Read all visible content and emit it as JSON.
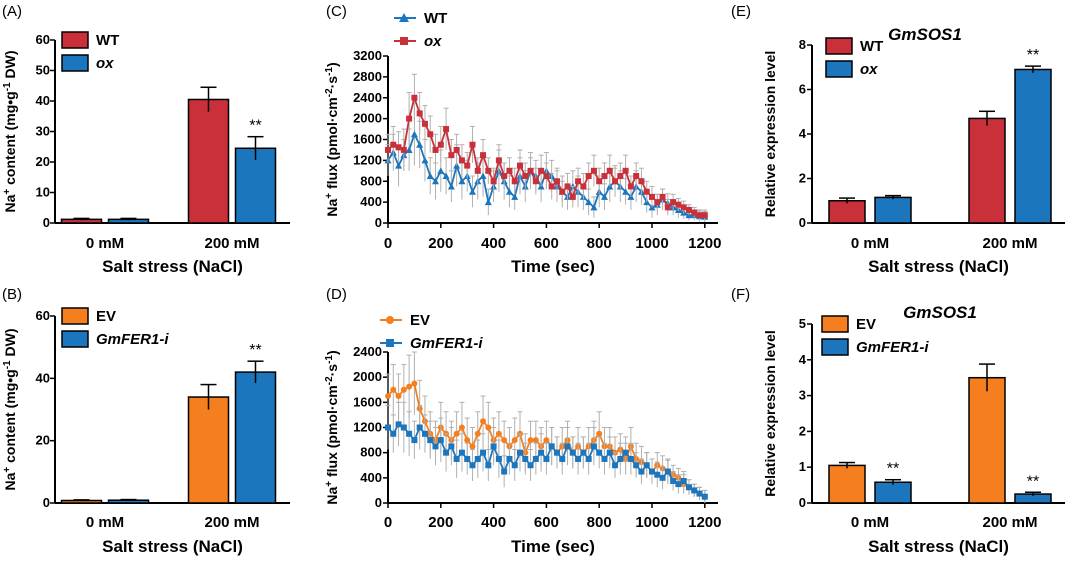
{
  "colors": {
    "red": "#c9303a",
    "blue": "#1c76bd",
    "orange": "#f57f1f",
    "errbar": "#b0b0b0"
  },
  "chart_data": [
    {
      "id": "A",
      "panel_label": "(A)",
      "type": "bar",
      "categories": [
        "0 mM",
        "200 mM"
      ],
      "series": [
        {
          "name": "WT",
          "italic": false,
          "color": "#c9303a",
          "values": [
            1.2,
            40.5
          ],
          "errors": [
            0.3,
            4.0
          ]
        },
        {
          "name": "ox",
          "italic": true,
          "color": "#1c76bd",
          "values": [
            1.2,
            24.5
          ],
          "errors": [
            0.3,
            3.8
          ]
        }
      ],
      "significance": [
        {
          "series": 1,
          "category": 1,
          "label": "**"
        }
      ],
      "title": "",
      "xlabel": "Salt stress (NaCl)",
      "ylabel": "Na⁺ content (mg•g⁻¹ DW)",
      "ylim": [
        0,
        60
      ],
      "yticks": [
        0,
        10,
        20,
        30,
        40,
        50,
        60
      ]
    },
    {
      "id": "B",
      "panel_label": "(B)",
      "type": "bar",
      "categories": [
        "0 mM",
        "200 mM"
      ],
      "series": [
        {
          "name": "EV",
          "italic": false,
          "color": "#f57f1f",
          "values": [
            0.8,
            34.0
          ],
          "errors": [
            0.2,
            4.0
          ]
        },
        {
          "name": "GmFER1-i",
          "italic": true,
          "color": "#1c76bd",
          "values": [
            0.9,
            42.0
          ],
          "errors": [
            0.2,
            3.5
          ]
        }
      ],
      "significance": [
        {
          "series": 1,
          "category": 1,
          "label": "**"
        }
      ],
      "title": "",
      "xlabel": "Salt stress (NaCl)",
      "ylabel": "Na⁺ content (mg•g⁻¹ DW)",
      "ylim": [
        0,
        60
      ],
      "yticks": [
        0,
        20,
        40,
        60
      ]
    },
    {
      "id": "C",
      "panel_label": "(C)",
      "type": "line",
      "x": [
        0,
        20,
        40,
        60,
        80,
        100,
        120,
        140,
        160,
        180,
        200,
        220,
        240,
        260,
        280,
        300,
        320,
        340,
        360,
        380,
        400,
        420,
        440,
        460,
        480,
        500,
        520,
        540,
        560,
        580,
        600,
        620,
        640,
        660,
        680,
        700,
        720,
        740,
        760,
        780,
        800,
        820,
        840,
        860,
        880,
        900,
        920,
        940,
        960,
        980,
        1000,
        1020,
        1040,
        1060,
        1080,
        1100,
        1120,
        1140,
        1160,
        1180,
        1200
      ],
      "series": [
        {
          "name": "WT",
          "italic": false,
          "color": "#1c76bd",
          "marker": "triangle",
          "values": [
            1200,
            1350,
            1100,
            1300,
            1400,
            1700,
            1500,
            1200,
            900,
            800,
            1000,
            900,
            700,
            1100,
            800,
            900,
            600,
            800,
            900,
            400,
            700,
            1000,
            800,
            600,
            500,
            900,
            700,
            1000,
            900,
            700,
            1000,
            900,
            700,
            600,
            500,
            700,
            600,
            500,
            400,
            300,
            600,
            500,
            700,
            800,
            700,
            600,
            500,
            700,
            600,
            400,
            300,
            350,
            450,
            380,
            300,
            250,
            200,
            150,
            150,
            130,
            120
          ],
          "errors": [
            300,
            350,
            400,
            300,
            400,
            600,
            450,
            400,
            350,
            350,
            400,
            350,
            300,
            400,
            350,
            300,
            300,
            350,
            400,
            250,
            300,
            400,
            350,
            300,
            250,
            350,
            300,
            350,
            300,
            300,
            350,
            300,
            300,
            300,
            250,
            300,
            300,
            250,
            250,
            200,
            300,
            250,
            300,
            300,
            300,
            250,
            250,
            300,
            250,
            200,
            200,
            200,
            200,
            180,
            150,
            150,
            120,
            100,
            100,
            100,
            100
          ]
        },
        {
          "name": "ox",
          "italic": true,
          "color": "#c9303a",
          "marker": "square",
          "values": [
            1400,
            1500,
            1450,
            1400,
            2000,
            2400,
            2100,
            1900,
            1700,
            1400,
            1500,
            1800,
            1300,
            1400,
            1200,
            1100,
            1500,
            1000,
            1300,
            1000,
            800,
            1200,
            900,
            1000,
            800,
            1100,
            900,
            1000,
            800,
            1000,
            900,
            700,
            800,
            600,
            700,
            500,
            800,
            700,
            900,
            1000,
            800,
            900,
            1000,
            800,
            900,
            1000,
            700,
            900,
            800,
            600,
            500,
            400,
            500,
            300,
            400,
            350,
            300,
            250,
            200,
            150,
            150
          ],
          "errors": [
            300,
            350,
            300,
            400,
            500,
            450,
            400,
            350,
            350,
            300,
            350,
            400,
            300,
            300,
            300,
            250,
            350,
            250,
            300,
            250,
            250,
            300,
            250,
            250,
            250,
            300,
            250,
            250,
            250,
            300,
            250,
            250,
            250,
            200,
            250,
            200,
            250,
            250,
            250,
            300,
            250,
            250,
            300,
            250,
            250,
            300,
            200,
            250,
            250,
            200,
            200,
            150,
            150,
            150,
            150,
            120,
            120,
            100,
            100,
            100,
            100
          ]
        }
      ],
      "title": "",
      "xlabel": "Time (sec)",
      "ylabel": "Na⁺ flux (pmol·cm⁻²·s⁻¹)",
      "xlim": [
        0,
        1250
      ],
      "xticks": [
        0,
        200,
        400,
        600,
        800,
        1000,
        1200
      ],
      "ylim": [
        0,
        3200
      ],
      "yticks": [
        0,
        400,
        800,
        1200,
        1600,
        2000,
        2400,
        2800,
        3200
      ]
    },
    {
      "id": "D",
      "panel_label": "(D)",
      "type": "line",
      "x": [
        0,
        20,
        40,
        60,
        80,
        100,
        120,
        140,
        160,
        180,
        200,
        220,
        240,
        260,
        280,
        300,
        320,
        340,
        360,
        380,
        400,
        420,
        440,
        460,
        480,
        500,
        520,
        540,
        560,
        580,
        600,
        620,
        640,
        660,
        680,
        700,
        720,
        740,
        760,
        780,
        800,
        820,
        840,
        860,
        880,
        900,
        920,
        940,
        960,
        980,
        1000,
        1020,
        1040,
        1060,
        1080,
        1100,
        1120,
        1140,
        1160,
        1180,
        1200
      ],
      "series": [
        {
          "name": "EV",
          "italic": false,
          "color": "#f57f1f",
          "marker": "circle",
          "values": [
            1700,
            1800,
            1700,
            1800,
            1850,
            1900,
            1500,
            1300,
            1100,
            1000,
            1200,
            1100,
            1000,
            1100,
            1200,
            1000,
            900,
            1100,
            1300,
            1200,
            1000,
            1100,
            1000,
            900,
            1000,
            1100,
            800,
            1000,
            1000,
            900,
            1000,
            900,
            800,
            900,
            1000,
            800,
            900,
            800,
            900,
            1000,
            1100,
            900,
            900,
            800,
            850,
            700,
            900,
            700,
            650,
            600,
            500,
            600,
            550,
            500,
            450,
            400,
            300,
            250,
            200,
            150,
            100
          ],
          "errors": [
            350,
            400,
            350,
            400,
            500,
            500,
            450,
            400,
            350,
            300,
            400,
            350,
            300,
            350,
            400,
            350,
            300,
            350,
            400,
            400,
            350,
            350,
            300,
            300,
            350,
            350,
            300,
            300,
            300,
            300,
            300,
            300,
            250,
            300,
            300,
            250,
            300,
            250,
            300,
            300,
            350,
            300,
            300,
            250,
            250,
            250,
            300,
            250,
            250,
            200,
            200,
            200,
            200,
            200,
            150,
            150,
            150,
            120,
            100,
            100,
            100
          ]
        },
        {
          "name": "GmFER1-i",
          "italic": true,
          "color": "#1c76bd",
          "marker": "square",
          "values": [
            1200,
            1100,
            1250,
            1200,
            1100,
            1000,
            1200,
            1100,
            1000,
            900,
            1000,
            800,
            900,
            700,
            800,
            700,
            600,
            700,
            800,
            600,
            900,
            700,
            500,
            700,
            600,
            800,
            700,
            600,
            700,
            800,
            700,
            900,
            800,
            700,
            900,
            800,
            700,
            800,
            700,
            900,
            800,
            700,
            800,
            600,
            700,
            800,
            700,
            600,
            500,
            600,
            500,
            450,
            400,
            500,
            350,
            300,
            350,
            250,
            200,
            150,
            100
          ],
          "errors": [
            350,
            300,
            350,
            400,
            350,
            300,
            350,
            300,
            300,
            300,
            350,
            300,
            300,
            300,
            300,
            250,
            250,
            300,
            300,
            250,
            300,
            300,
            250,
            250,
            250,
            300,
            250,
            250,
            250,
            300,
            250,
            300,
            250,
            250,
            300,
            250,
            250,
            250,
            250,
            300,
            250,
            250,
            250,
            200,
            250,
            250,
            250,
            200,
            200,
            200,
            200,
            200,
            180,
            180,
            150,
            150,
            150,
            120,
            100,
            100,
            100
          ]
        }
      ],
      "title": "",
      "xlabel": "Time (sec)",
      "ylabel": "Na⁺ flux (pmol·cm⁻²·s⁻¹)",
      "xlim": [
        0,
        1250
      ],
      "xticks": [
        0,
        200,
        400,
        600,
        800,
        1000,
        1200
      ],
      "ylim": [
        0,
        2400
      ],
      "yticks": [
        0,
        400,
        800,
        1200,
        1600,
        2000,
        2400
      ]
    },
    {
      "id": "E",
      "panel_label": "(E)",
      "type": "bar",
      "categories": [
        "0 mM",
        "200 mM"
      ],
      "series": [
        {
          "name": "WT",
          "italic": false,
          "color": "#c9303a",
          "values": [
            1.0,
            4.7
          ],
          "errors": [
            0.12,
            0.32
          ]
        },
        {
          "name": "ox",
          "italic": true,
          "color": "#1c76bd",
          "values": [
            1.15,
            6.9
          ],
          "errors": [
            0.08,
            0.15
          ]
        }
      ],
      "significance": [
        {
          "series": 1,
          "category": 1,
          "label": "**"
        }
      ],
      "title": "GmSOS1",
      "xlabel": "Salt stress (NaCl)",
      "ylabel": "Relative expression level",
      "ylim": [
        0,
        8
      ],
      "yticks": [
        0,
        2,
        4,
        6,
        8
      ]
    },
    {
      "id": "F",
      "panel_label": "(F)",
      "type": "bar",
      "categories": [
        "0 mM",
        "200 mM"
      ],
      "series": [
        {
          "name": "EV",
          "italic": false,
          "color": "#f57f1f",
          "values": [
            1.05,
            3.5
          ],
          "errors": [
            0.08,
            0.38
          ]
        },
        {
          "name": "GmFER1-i",
          "italic": true,
          "color": "#1c76bd",
          "values": [
            0.58,
            0.25
          ],
          "errors": [
            0.07,
            0.05
          ]
        }
      ],
      "significance": [
        {
          "series": 1,
          "category": 0,
          "label": "**"
        },
        {
          "series": 1,
          "category": 1,
          "label": "**"
        }
      ],
      "title": "GmSOS1",
      "xlabel": "Salt stress (NaCl)",
      "ylabel": "Relative expression level",
      "ylim": [
        0,
        5
      ],
      "yticks": [
        0,
        1,
        2,
        3,
        4,
        5
      ]
    }
  ]
}
